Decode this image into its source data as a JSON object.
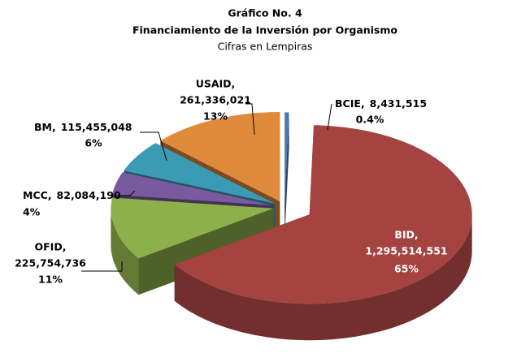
{
  "chart_data": {
    "type": "pie3d",
    "title": "Gráfico No. 4",
    "subtitle": "Financiamiento de la Inversión por Organismo",
    "note": "Cifras en Lempiras",
    "categories": [
      "BCIE,",
      "BID,",
      "OFID,",
      "MCC,",
      "BM,",
      "USAID,"
    ],
    "values": [
      8431515,
      1295514551,
      225754736,
      82084190,
      115455048,
      261336021
    ],
    "value_labels": [
      "8,431,515",
      "1,295,514,551",
      "225,754,736",
      "82,084,190",
      "115,455,048",
      "261,336,021"
    ],
    "percents": [
      0.4,
      65,
      11,
      4,
      6,
      13
    ],
    "percent_labels": [
      "0.4%",
      "65%",
      "11%",
      "4%",
      "6%",
      "13%"
    ],
    "colors": [
      "#4a78b8",
      "#a54341",
      "#8db04a",
      "#7a5a9e",
      "#3c9bb4",
      "#e08a3c"
    ]
  }
}
